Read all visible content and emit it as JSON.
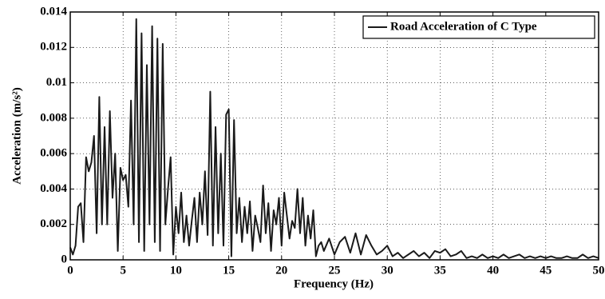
{
  "chart_data": {
    "type": "line",
    "xlabel": "Frequency (Hz)",
    "ylabel": "Acceleration (m/s²)",
    "xlim": [
      0,
      50
    ],
    "ylim": [
      0,
      0.014
    ],
    "xticks": [
      0,
      5,
      10,
      15,
      20,
      25,
      30,
      35,
      40,
      45,
      50
    ],
    "yticks": [
      0,
      0.002,
      0.004,
      0.006,
      0.008,
      0.01,
      0.012,
      0.014
    ],
    "grid": true,
    "legend": "upper right",
    "series": [
      {
        "name": "Road Acceleration of C Type",
        "color": "#1a1a1a",
        "x": [
          0,
          0.25,
          0.5,
          0.75,
          1,
          1.25,
          1.5,
          1.75,
          2,
          2.25,
          2.5,
          2.75,
          3,
          3.25,
          3.5,
          3.75,
          4,
          4.25,
          4.5,
          4.75,
          5,
          5.25,
          5.5,
          5.75,
          6,
          6.25,
          6.5,
          6.75,
          7,
          7.25,
          7.5,
          7.75,
          8,
          8.25,
          8.5,
          8.75,
          9,
          9.25,
          9.5,
          9.75,
          10,
          10.25,
          10.5,
          10.75,
          11,
          11.25,
          11.5,
          11.75,
          12,
          12.25,
          12.5,
          12.75,
          13,
          13.25,
          13.5,
          13.75,
          14,
          14.25,
          14.5,
          14.75,
          15,
          15.25,
          15.5,
          15.75,
          16,
          16.25,
          16.5,
          16.75,
          17,
          17.25,
          17.5,
          17.75,
          18,
          18.25,
          18.5,
          18.75,
          19,
          19.25,
          19.5,
          19.75,
          20,
          20.25,
          20.5,
          20.75,
          21,
          21.25,
          21.5,
          21.75,
          22,
          22.25,
          22.5,
          22.75,
          23,
          23.25,
          23.5,
          23.75,
          24,
          24.5,
          25,
          25.5,
          26,
          26.5,
          27,
          27.5,
          28,
          28.5,
          29,
          29.5,
          30,
          30.5,
          31,
          31.5,
          32,
          32.5,
          33,
          33.5,
          34,
          34.5,
          35,
          35.5,
          36,
          36.5,
          37,
          37.5,
          38,
          38.5,
          39,
          39.5,
          40,
          40.5,
          41,
          41.5,
          42,
          42.5,
          43,
          43.5,
          44,
          44.5,
          45,
          45.5,
          46,
          46.5,
          47,
          47.5,
          48,
          48.5,
          49,
          49.5,
          50
        ],
        "values": [
          0.0007,
          0.0003,
          0.0008,
          0.003,
          0.0032,
          0.001,
          0.0058,
          0.005,
          0.0055,
          0.007,
          0.0015,
          0.0092,
          0.002,
          0.0075,
          0.002,
          0.0084,
          0.0035,
          0.006,
          0.0005,
          0.0052,
          0.0045,
          0.0048,
          0.003,
          0.009,
          0.002,
          0.0136,
          0.001,
          0.0128,
          0.0005,
          0.011,
          0.002,
          0.0132,
          0.001,
          0.0125,
          0.0005,
          0.0122,
          0.002,
          0.004,
          0.0058,
          0.0003,
          0.003,
          0.0015,
          0.0038,
          0.001,
          0.0025,
          0.0008,
          0.0022,
          0.0035,
          0.001,
          0.0038,
          0.002,
          0.005,
          0.0014,
          0.0095,
          0.0008,
          0.0075,
          0.0015,
          0.006,
          0.0008,
          0.0082,
          0.0085,
          0.0002,
          0.0079,
          0.0015,
          0.0035,
          0.001,
          0.003,
          0.0015,
          0.0033,
          0.0005,
          0.0025,
          0.0018,
          0.001,
          0.0042,
          0.0015,
          0.0032,
          0.0005,
          0.0028,
          0.002,
          0.0035,
          0.0008,
          0.0038,
          0.0025,
          0.0012,
          0.0022,
          0.0018,
          0.004,
          0.0015,
          0.0035,
          0.0008,
          0.0025,
          0.0012,
          0.0028,
          0.0002,
          0.0008,
          0.001,
          0.0005,
          0.0012,
          0.0003,
          0.001,
          0.0013,
          0.0004,
          0.0015,
          0.0003,
          0.0014,
          0.0008,
          0.0003,
          0.0005,
          0.0008,
          0.0002,
          0.0004,
          0.0001,
          0.0003,
          0.0005,
          0.0002,
          0.0004,
          0.0001,
          0.0005,
          0.0004,
          0.0006,
          0.0002,
          0.0003,
          0.0005,
          0.0001,
          0.0002,
          0.0001,
          0.0003,
          0.0001,
          0.0002,
          0.0001,
          0.0003,
          0.0001,
          0.0002,
          0.0003,
          0.0001,
          0.0002,
          0.0001,
          0.0002,
          0.0001,
          0.0002,
          0.0001,
          0.0001,
          0.0002,
          0.0001,
          0.0001,
          0.0003,
          0.0001,
          0.0002,
          0.0001
        ]
      }
    ]
  }
}
